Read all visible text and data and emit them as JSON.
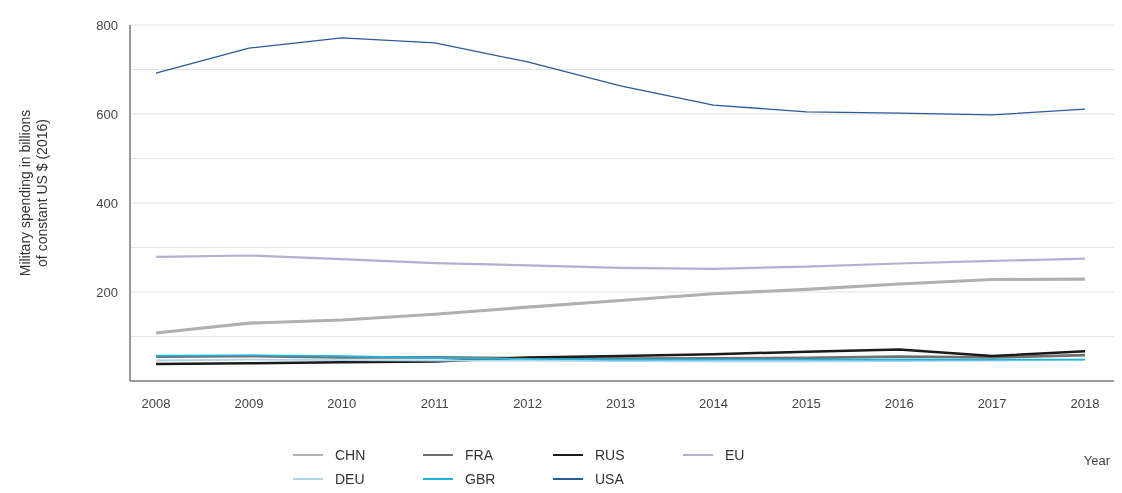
{
  "chart_data": {
    "type": "line",
    "xlabel": "Year",
    "ylabel": "Military spending in billions\nof constant US $ (2016)",
    "categories": [
      "2008",
      "2009",
      "2010",
      "2011",
      "2012",
      "2013",
      "2014",
      "2015",
      "2016",
      "2017",
      "2018"
    ],
    "ylim": [
      0,
      800
    ],
    "yticks": [
      {
        "value": 100,
        "label": null
      },
      200,
      {
        "value": 300,
        "label": null
      },
      400,
      {
        "value": 500,
        "label": null
      },
      600,
      {
        "value": 700,
        "label": null
      },
      800
    ],
    "grid": "y",
    "legend": "bottom",
    "line_style": "solid",
    "series": [
      {
        "name": "CHN",
        "color": "#b0b0b0",
        "values": [
          108,
          130,
          137,
          150,
          166,
          181,
          196,
          206,
          218,
          228,
          229
        ]
      },
      {
        "name": "FRA",
        "color": "#707070",
        "values": [
          55,
          56,
          53,
          53,
          51,
          50,
          51,
          52,
          55,
          53,
          58
        ]
      },
      {
        "name": "RUS",
        "color": "#1a1a1a",
        "values": [
          38,
          40,
          42,
          44,
          53,
          56,
          60,
          66,
          71,
          56,
          67
        ]
      },
      {
        "name": "EU",
        "color": "#b4b0d4",
        "values": [
          279,
          282,
          274,
          265,
          260,
          254,
          252,
          257,
          264,
          270,
          275
        ]
      },
      {
        "name": "DEU",
        "color": "#aed4ec",
        "values": [
          46,
          48,
          47,
          46,
          46,
          45,
          44,
          44,
          45,
          46,
          48
        ]
      },
      {
        "name": "GBR",
        "color": "#1eb4e0",
        "values": [
          57,
          58,
          56,
          52,
          50,
          48,
          48,
          48,
          48,
          48,
          48
        ]
      },
      {
        "name": "USA",
        "color": "#2a5a9a",
        "values": [
          692,
          748,
          771,
          760,
          717,
          663,
          620,
          605,
          602,
          598,
          611
        ]
      }
    ]
  }
}
